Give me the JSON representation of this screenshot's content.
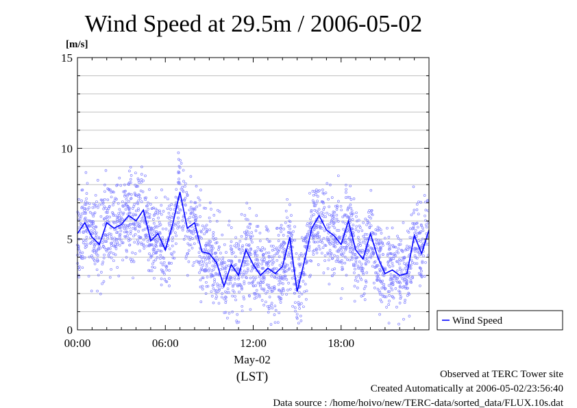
{
  "chart_data": {
    "type": "scatter",
    "title": "Wind Speed at 29.5m / 2006-05-02",
    "ylabel": "[m/s]",
    "ylim": [
      0,
      15
    ],
    "yticks": [
      "0",
      "5",
      "10",
      "15"
    ],
    "xlim_hours": [
      0,
      24
    ],
    "xticks": [
      "00:00",
      "06:00",
      "12:00",
      "18:00"
    ],
    "xlabel_date": "May-02",
    "xlabel_tz": "(LST)",
    "grid": true,
    "legend_position": "right",
    "series": [
      {
        "name": "Wind Speed",
        "color": "#0000ff",
        "points_color": "#8080ff",
        "mean": [
          [
            0.0,
            5.3
          ],
          [
            0.5,
            5.9
          ],
          [
            1.0,
            5.1
          ],
          [
            1.5,
            4.7
          ],
          [
            2.0,
            5.9
          ],
          [
            2.5,
            5.6
          ],
          [
            3.0,
            5.8
          ],
          [
            3.5,
            6.3
          ],
          [
            4.0,
            6.0
          ],
          [
            4.5,
            6.6
          ],
          [
            5.0,
            4.9
          ],
          [
            5.5,
            5.3
          ],
          [
            6.0,
            4.4
          ],
          [
            6.5,
            5.8
          ],
          [
            7.0,
            7.6
          ],
          [
            7.5,
            5.6
          ],
          [
            8.0,
            5.9
          ],
          [
            8.5,
            4.3
          ],
          [
            9.0,
            4.2
          ],
          [
            9.5,
            3.7
          ],
          [
            10.0,
            2.4
          ],
          [
            10.5,
            3.6
          ],
          [
            11.0,
            3.0
          ],
          [
            11.5,
            4.4
          ],
          [
            12.0,
            3.6
          ],
          [
            12.5,
            3.0
          ],
          [
            13.0,
            3.4
          ],
          [
            13.5,
            3.1
          ],
          [
            14.0,
            3.5
          ],
          [
            14.5,
            5.1
          ],
          [
            15.0,
            2.1
          ],
          [
            15.5,
            3.8
          ],
          [
            16.0,
            5.6
          ],
          [
            16.5,
            6.3
          ],
          [
            17.0,
            5.5
          ],
          [
            17.5,
            5.2
          ],
          [
            18.0,
            4.7
          ],
          [
            18.5,
            6.0
          ],
          [
            19.0,
            4.4
          ],
          [
            19.5,
            3.9
          ],
          [
            20.0,
            5.3
          ],
          [
            20.5,
            4.0
          ],
          [
            21.0,
            3.1
          ],
          [
            21.5,
            3.3
          ],
          [
            22.0,
            3.0
          ],
          [
            22.5,
            3.1
          ],
          [
            23.0,
            5.2
          ],
          [
            23.5,
            4.2
          ],
          [
            24.0,
            5.5
          ]
        ],
        "scatter_spread": 1.2
      }
    ]
  },
  "footer": {
    "site": "Observed at TERC Tower site",
    "created": "Created Automatically at 2006-05-02/23:56:40",
    "source": "Data source : /home/hoivo/new/TERC-data/sorted_data/FLUX.10s.dat"
  }
}
